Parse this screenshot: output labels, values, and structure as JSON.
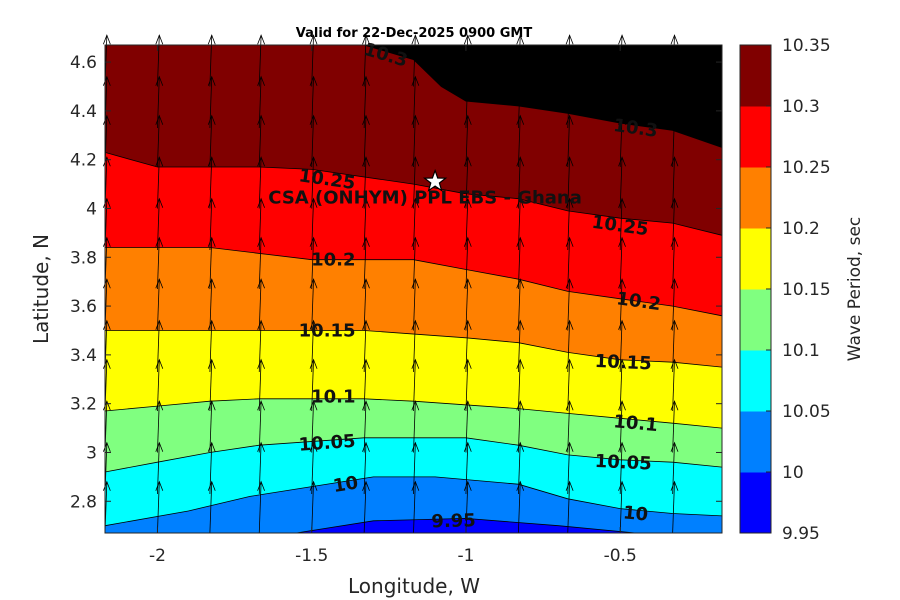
{
  "chart_data": {
    "type": "contour",
    "title": "Valid for 22-Dec-2025 0900 GMT",
    "xlabel": "Longitude, W",
    "ylabel": "Latitude, N",
    "xlim": [
      -2.17,
      -0.17
    ],
    "ylim": [
      2.67,
      4.67
    ],
    "xticks": [
      -2,
      -1.5,
      -1,
      -0.5
    ],
    "xtick_labels": [
      "-2",
      "-1.5",
      "-1",
      "-0.5"
    ],
    "yticks": [
      2.8,
      3,
      3.2,
      3.4,
      3.6,
      3.8,
      4,
      4.2,
      4.4,
      4.6
    ],
    "ytick_labels": [
      "2.8",
      "3",
      "3.2",
      "3.4",
      "3.6",
      "3.8",
      "4",
      "4.2",
      "4.4",
      "4.6"
    ],
    "colorbar": {
      "label": "Wave Period, sec",
      "levels": [
        9.95,
        10,
        10.05,
        10.1,
        10.15,
        10.2,
        10.25,
        10.3,
        10.35
      ],
      "tick_labels": [
        "9.95",
        "10",
        "10.05",
        "10.1",
        "10.15",
        "10.2",
        "10.25",
        "10.3",
        "10.35"
      ],
      "colors": [
        "#0000ff",
        "#0080ff",
        "#00ffff",
        "#80ff80",
        "#ffff00",
        "#ff8000",
        "#ff0000",
        "#800000"
      ]
    },
    "contours": [
      {
        "level": 9.95,
        "label": "9.95",
        "points": [
          [
            -1.55,
            2.67
          ],
          [
            -1.3,
            2.72
          ],
          [
            -1.0,
            2.73
          ],
          [
            -0.7,
            2.7
          ],
          [
            -0.45,
            2.67
          ]
        ]
      },
      {
        "level": 10,
        "label": "10",
        "points": [
          [
            -2.17,
            2.7
          ],
          [
            -1.9,
            2.76
          ],
          [
            -1.7,
            2.82
          ],
          [
            -1.5,
            2.86
          ],
          [
            -1.3,
            2.9
          ],
          [
            -1.1,
            2.9
          ],
          [
            -0.83,
            2.87
          ],
          [
            -0.67,
            2.81
          ],
          [
            -0.5,
            2.77
          ],
          [
            -0.33,
            2.75
          ],
          [
            -0.17,
            2.74
          ]
        ]
      },
      {
        "level": 10.05,
        "label": "10.05",
        "points": [
          [
            -2.17,
            2.92
          ],
          [
            -2.0,
            2.96
          ],
          [
            -1.83,
            3.0
          ],
          [
            -1.67,
            3.03
          ],
          [
            -1.33,
            3.06
          ],
          [
            -1.0,
            3.06
          ],
          [
            -0.83,
            3.03
          ],
          [
            -0.67,
            2.99
          ],
          [
            -0.5,
            2.97
          ],
          [
            -0.33,
            2.96
          ],
          [
            -0.17,
            2.94
          ]
        ]
      },
      {
        "level": 10.1,
        "label": "10.1",
        "points": [
          [
            -2.17,
            3.17
          ],
          [
            -2.0,
            3.19
          ],
          [
            -1.83,
            3.21
          ],
          [
            -1.67,
            3.22
          ],
          [
            -1.33,
            3.22
          ],
          [
            -1.17,
            3.21
          ],
          [
            -0.83,
            3.18
          ],
          [
            -0.67,
            3.16
          ],
          [
            -0.5,
            3.14
          ],
          [
            -0.33,
            3.12
          ],
          [
            -0.17,
            3.1
          ]
        ]
      },
      {
        "level": 10.15,
        "label": "10.15",
        "points": [
          [
            -2.17,
            3.5
          ],
          [
            -1.33,
            3.5
          ],
          [
            -1.0,
            3.47
          ],
          [
            -0.83,
            3.45
          ],
          [
            -0.67,
            3.41
          ],
          [
            -0.5,
            3.38
          ],
          [
            -0.33,
            3.37
          ],
          [
            -0.17,
            3.35
          ]
        ]
      },
      {
        "level": 10.2,
        "label": "10.2",
        "points": [
          [
            -2.17,
            3.84
          ],
          [
            -1.83,
            3.84
          ],
          [
            -1.5,
            3.79
          ],
          [
            -1.17,
            3.79
          ],
          [
            -1.0,
            3.75
          ],
          [
            -0.83,
            3.71
          ],
          [
            -0.67,
            3.66
          ],
          [
            -0.5,
            3.63
          ],
          [
            -0.33,
            3.6
          ],
          [
            -0.17,
            3.56
          ]
        ]
      },
      {
        "level": 10.25,
        "label": "10.25",
        "points": [
          [
            -2.17,
            4.23
          ],
          [
            -2.0,
            4.17
          ],
          [
            -1.67,
            4.17
          ],
          [
            -1.5,
            4.16
          ],
          [
            -1.17,
            4.1
          ],
          [
            -1.0,
            4.06
          ],
          [
            -0.83,
            4.04
          ],
          [
            -0.67,
            3.99
          ],
          [
            -0.5,
            3.96
          ],
          [
            -0.33,
            3.94
          ],
          [
            -0.17,
            3.89
          ]
        ]
      },
      {
        "level": 10.3,
        "label": "10.3",
        "points": [
          [
            -1.33,
            4.67
          ],
          [
            -1.17,
            4.61
          ],
          [
            -1.08,
            4.5
          ],
          [
            -1.0,
            4.44
          ],
          [
            -0.83,
            4.42
          ],
          [
            -0.67,
            4.39
          ],
          [
            -0.5,
            4.35
          ],
          [
            -0.33,
            4.32
          ],
          [
            -0.17,
            4.25
          ]
        ]
      }
    ],
    "contour_label_positions": [
      {
        "label": "10.3",
        "x": -1.26,
        "y": 4.63
      },
      {
        "label": "10.3",
        "x": -0.45,
        "y": 4.33
      },
      {
        "label": "10.25",
        "x": -1.45,
        "y": 4.12
      },
      {
        "label": "10.25",
        "x": -0.5,
        "y": 3.93
      },
      {
        "label": "10.2",
        "x": -1.43,
        "y": 3.79
      },
      {
        "label": "10.2",
        "x": -0.44,
        "y": 3.62
      },
      {
        "label": "10.15",
        "x": -1.45,
        "y": 3.5
      },
      {
        "label": "10.15",
        "x": -0.49,
        "y": 3.37
      },
      {
        "label": "10.1",
        "x": -1.43,
        "y": 3.23
      },
      {
        "label": "10.1",
        "x": -0.45,
        "y": 3.12
      },
      {
        "label": "10.05",
        "x": -1.45,
        "y": 3.04
      },
      {
        "label": "10.05",
        "x": -0.49,
        "y": 2.96
      },
      {
        "label": "10",
        "x": -1.39,
        "y": 2.87
      },
      {
        "label": "10",
        "x": -0.45,
        "y": 2.75
      },
      {
        "label": "9.95",
        "x": -1.04,
        "y": 2.72
      }
    ],
    "vector_field": {
      "description": "Wave direction arrows on a regular grid, pointing roughly northward",
      "x": [
        -2.17,
        -2.0,
        -1.83,
        -1.67,
        -1.5,
        -1.33,
        -1.17,
        -1.0,
        -0.83,
        -0.67,
        -0.5,
        -0.33
      ],
      "y": [
        2.67,
        2.83,
        3.0,
        3.17,
        3.33,
        3.5,
        3.67,
        3.83,
        4.0,
        4.17,
        4.33,
        4.5
      ],
      "length_deg": 0.21,
      "dx_deg": 0.006
    },
    "site_marker": {
      "label": "CSA (ONHYM) PPL EBS  - Ghana",
      "x": -1.1,
      "y": 4.11
    }
  }
}
